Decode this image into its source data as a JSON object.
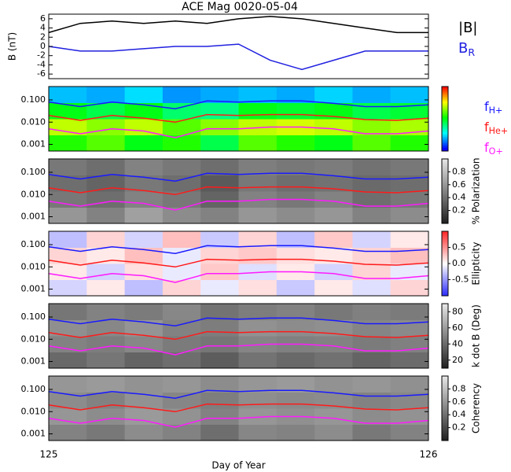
{
  "chart_data": [
    {
      "type": "line",
      "title": "ACE Mag 0020-05-04",
      "y_label": "B (nT)",
      "xlim": [
        125,
        126
      ],
      "x": [
        125,
        125.0833,
        125.1667,
        125.25,
        125.3333,
        125.4167,
        125.5,
        125.5833,
        125.6667,
        125.75,
        125.8333,
        125.9167,
        126
      ],
      "ylim": [
        -7,
        7
      ],
      "yticks": [
        -6,
        -4,
        -2,
        0,
        2,
        4,
        6
      ],
      "series": [
        {
          "name": "|B|",
          "color": "#000000",
          "values": [
            3,
            5,
            5.5,
            5,
            5.5,
            5,
            6,
            6.5,
            6,
            5,
            4,
            3,
            3
          ]
        },
        {
          "name": "B",
          "subscript": "R",
          "color": "#2020e0",
          "values": [
            0,
            -1,
            -1,
            -0.5,
            0,
            0,
            0.5,
            -3,
            -5,
            -3,
            -1,
            -1,
            -1
          ]
        }
      ]
    },
    {
      "type": "spectrogram",
      "log_y": true,
      "ylim": [
        0.0005,
        0.4
      ],
      "yticks": [
        0.001,
        {
          "value": 0.01,
          "label": "0.010"
        },
        {
          "value": 0.1,
          "label": "0.100"
        }
      ],
      "xlim": [
        125,
        126
      ],
      "colormap": "rainbow",
      "zlim": [
        0,
        1
      ],
      "legend": true,
      "z": [
        [
          0.55,
          0.6,
          0.5,
          0.55,
          0.45,
          0.6,
          0.55,
          0.5,
          0.6,
          0.55
        ],
        [
          0.7,
          0.65,
          0.7,
          0.6,
          0.65,
          0.7,
          0.72,
          0.7,
          0.65,
          0.68
        ],
        [
          0.5,
          0.45,
          0.5,
          0.42,
          0.4,
          0.5,
          0.48,
          0.5,
          0.45,
          0.47
        ],
        [
          0.22,
          0.2,
          0.25,
          0.18,
          0.2,
          0.22,
          0.2,
          0.24,
          0.2,
          0.22
        ]
      ],
      "x": [
        125,
        125.0833,
        125.1667,
        125.25,
        125.3333,
        125.4167,
        125.5,
        125.5833,
        125.6667,
        125.75,
        125.8333,
        125.9167,
        126
      ],
      "series": [
        {
          "name": "f",
          "subscript": "H+",
          "color": "#1a1aff",
          "values": [
            0.08,
            0.05,
            0.08,
            0.06,
            0.04,
            0.09,
            0.08,
            0.09,
            0.09,
            0.07,
            0.05,
            0.05,
            0.06
          ]
        },
        {
          "name": "f",
          "subscript": "He+",
          "color": "#ff1a1a",
          "values": [
            0.02,
            0.012,
            0.02,
            0.015,
            0.01,
            0.022,
            0.02,
            0.022,
            0.022,
            0.018,
            0.013,
            0.012,
            0.015
          ]
        },
        {
          "name": "f",
          "subscript": "O+",
          "color": "#ff1aff",
          "values": [
            0.005,
            0.003,
            0.005,
            0.004,
            0.002,
            0.005,
            0.005,
            0.006,
            0.006,
            0.005,
            0.003,
            0.003,
            0.004
          ]
        }
      ]
    },
    {
      "type": "spectrogram",
      "log_y": true,
      "ylim": [
        0.0005,
        0.4
      ],
      "yticks": [
        0.001,
        {
          "value": 0.01,
          "label": "0.010"
        },
        {
          "value": 0.1,
          "label": "0.100"
        }
      ],
      "xlim": [
        125,
        126
      ],
      "colormap": "gray",
      "zlim": [
        0,
        1
      ],
      "colorbar_label": "% Polarization",
      "colorbar_ticks": [
        0.2,
        0.4,
        0.6,
        0.8
      ],
      "z": [
        [
          0.6,
          0.5,
          0.65,
          0.55,
          0.5,
          0.6,
          0.55,
          0.6,
          0.5,
          0.55
        ],
        [
          0.45,
          0.4,
          0.5,
          0.45,
          0.35,
          0.5,
          0.45,
          0.5,
          0.4,
          0.45
        ],
        [
          0.4,
          0.35,
          0.45,
          0.4,
          0.3,
          0.45,
          0.4,
          0.42,
          0.38,
          0.4
        ],
        [
          0.45,
          0.4,
          0.5,
          0.45,
          0.4,
          0.48,
          0.45,
          0.47,
          0.42,
          0.45
        ]
      ],
      "x": [
        125,
        125.0833,
        125.1667,
        125.25,
        125.3333,
        125.4167,
        125.5,
        125.5833,
        125.6667,
        125.75,
        125.8333,
        125.9167,
        126
      ],
      "series": [
        {
          "name": "f",
          "subscript": "H+",
          "color": "#1a1aff",
          "values": [
            0.08,
            0.05,
            0.08,
            0.06,
            0.04,
            0.09,
            0.08,
            0.09,
            0.09,
            0.07,
            0.05,
            0.05,
            0.06
          ]
        },
        {
          "name": "f",
          "subscript": "He+",
          "color": "#ff1a1a",
          "values": [
            0.02,
            0.012,
            0.02,
            0.015,
            0.01,
            0.022,
            0.02,
            0.022,
            0.022,
            0.018,
            0.013,
            0.012,
            0.015
          ]
        },
        {
          "name": "f",
          "subscript": "O+",
          "color": "#ff1aff",
          "values": [
            0.005,
            0.003,
            0.005,
            0.004,
            0.002,
            0.005,
            0.005,
            0.006,
            0.006,
            0.005,
            0.003,
            0.003,
            0.004
          ]
        }
      ]
    },
    {
      "type": "spectrogram",
      "log_y": true,
      "ylim": [
        0.0005,
        0.4
      ],
      "yticks": [
        0.001,
        {
          "value": 0.01,
          "label": "0.010"
        },
        {
          "value": 0.1,
          "label": "0.100"
        }
      ],
      "xlim": [
        125,
        126
      ],
      "colormap": "bwr",
      "zlim": [
        -1,
        1
      ],
      "colorbar_label": "Ellipticity",
      "colorbar_ticks": [
        -0.5,
        {
          "value": 0,
          "label": "0.0"
        },
        0.5
      ],
      "z": [
        [
          -0.2,
          0.1,
          -0.3,
          0.2,
          -0.1,
          0.15,
          -0.25,
          0.1,
          -0.15,
          0.2
        ],
        [
          0.1,
          -0.2,
          0.15,
          -0.1,
          0.25,
          -0.15,
          0.1,
          -0.2,
          0.2,
          -0.1
        ],
        [
          0.2,
          0.1,
          0.3,
          -0.1,
          0.2,
          0.25,
          0.15,
          0.1,
          0.2,
          0.3
        ],
        [
          -0.3,
          0.2,
          -0.2,
          0.3,
          -0.25,
          0.2,
          -0.3,
          0.25,
          -0.2,
          0.1
        ]
      ],
      "x": [
        125,
        125.0833,
        125.1667,
        125.25,
        125.3333,
        125.4167,
        125.5,
        125.5833,
        125.6667,
        125.75,
        125.8333,
        125.9167,
        126
      ],
      "series": [
        {
          "name": "f",
          "subscript": "H+",
          "color": "#1a1aff",
          "values": [
            0.08,
            0.05,
            0.08,
            0.06,
            0.04,
            0.09,
            0.08,
            0.09,
            0.09,
            0.07,
            0.05,
            0.05,
            0.06
          ]
        },
        {
          "name": "f",
          "subscript": "He+",
          "color": "#ff1a1a",
          "values": [
            0.02,
            0.012,
            0.02,
            0.015,
            0.01,
            0.022,
            0.02,
            0.022,
            0.022,
            0.018,
            0.013,
            0.012,
            0.015
          ]
        },
        {
          "name": "f",
          "subscript": "O+",
          "color": "#ff1aff",
          "values": [
            0.005,
            0.003,
            0.005,
            0.004,
            0.002,
            0.005,
            0.005,
            0.006,
            0.006,
            0.005,
            0.003,
            0.003,
            0.004
          ]
        }
      ]
    },
    {
      "type": "spectrogram",
      "log_y": true,
      "ylim": [
        0.0005,
        0.4
      ],
      "yticks": [
        0.001,
        {
          "value": 0.01,
          "label": "0.010"
        },
        {
          "value": 0.1,
          "label": "0.100"
        }
      ],
      "xlim": [
        125,
        126
      ],
      "colormap": "gray",
      "zlim": [
        10,
        90
      ],
      "colorbar_label": "k dot B (Deg)",
      "colorbar_ticks": [
        20,
        40,
        60,
        80
      ],
      "z": [
        [
          40,
          45,
          38,
          42,
          35,
          44,
          40,
          43,
          38,
          41
        ],
        [
          50,
          48,
          52,
          47,
          45,
          51,
          49,
          50,
          47,
          49
        ],
        [
          55,
          52,
          57,
          50,
          48,
          56,
          54,
          55,
          51,
          53
        ],
        [
          45,
          50,
          47,
          52,
          44,
          48,
          50,
          46,
          49,
          47
        ]
      ],
      "x": [
        125,
        125.0833,
        125.1667,
        125.25,
        125.3333,
        125.4167,
        125.5,
        125.5833,
        125.6667,
        125.75,
        125.8333,
        125.9167,
        126
      ],
      "series": [
        {
          "name": "f",
          "subscript": "H+",
          "color": "#1a1aff",
          "values": [
            0.08,
            0.05,
            0.08,
            0.06,
            0.04,
            0.09,
            0.08,
            0.09,
            0.09,
            0.07,
            0.05,
            0.05,
            0.06
          ]
        },
        {
          "name": "f",
          "subscript": "He+",
          "color": "#ff1a1a",
          "values": [
            0.02,
            0.012,
            0.02,
            0.015,
            0.01,
            0.022,
            0.02,
            0.022,
            0.022,
            0.018,
            0.013,
            0.012,
            0.015
          ]
        },
        {
          "name": "f",
          "subscript": "O+",
          "color": "#ff1aff",
          "values": [
            0.005,
            0.003,
            0.005,
            0.004,
            0.002,
            0.005,
            0.005,
            0.006,
            0.006,
            0.005,
            0.003,
            0.003,
            0.004
          ]
        }
      ]
    },
    {
      "type": "spectrogram",
      "log_y": true,
      "ylim": [
        0.0005,
        0.4
      ],
      "yticks": [
        0.001,
        {
          "value": 0.01,
          "label": "0.010"
        },
        {
          "value": 0.1,
          "label": "0.100"
        }
      ],
      "xlim": [
        125,
        126
      ],
      "colormap": "gray",
      "zlim": [
        0,
        1
      ],
      "colorbar_label": "Coherency",
      "colorbar_ticks": [
        0.2,
        0.4,
        0.6,
        0.8
      ],
      "z": [
        [
          0.5,
          0.45,
          0.55,
          0.5,
          0.4,
          0.52,
          0.5,
          0.55,
          0.45,
          0.5
        ],
        [
          0.6,
          0.55,
          0.62,
          0.58,
          0.5,
          0.6,
          0.57,
          0.6,
          0.55,
          0.58
        ],
        [
          0.55,
          0.5,
          0.58,
          0.52,
          0.48,
          0.56,
          0.54,
          0.55,
          0.5,
          0.53
        ],
        [
          0.6,
          0.62,
          0.58,
          0.6,
          0.55,
          0.6,
          0.62,
          0.58,
          0.6,
          0.57
        ]
      ],
      "x": [
        125,
        125.0833,
        125.1667,
        125.25,
        125.3333,
        125.4167,
        125.5,
        125.5833,
        125.6667,
        125.75,
        125.8333,
        125.9167,
        126
      ],
      "xticks": [
        125,
        126
      ],
      "x_label": "Day of Year",
      "series": [
        {
          "name": "f",
          "subscript": "H+",
          "color": "#1a1aff",
          "values": [
            0.08,
            0.05,
            0.08,
            0.06,
            0.04,
            0.09,
            0.08,
            0.09,
            0.09,
            0.07,
            0.05,
            0.05,
            0.06
          ]
        },
        {
          "name": "f",
          "subscript": "He+",
          "color": "#ff1a1a",
          "values": [
            0.02,
            0.012,
            0.02,
            0.015,
            0.01,
            0.022,
            0.02,
            0.022,
            0.022,
            0.018,
            0.013,
            0.012,
            0.015
          ]
        },
        {
          "name": "f",
          "subscript": "O+",
          "color": "#ff1aff",
          "values": [
            0.005,
            0.003,
            0.005,
            0.004,
            0.002,
            0.005,
            0.005,
            0.006,
            0.006,
            0.005,
            0.003,
            0.003,
            0.004
          ]
        }
      ]
    }
  ]
}
